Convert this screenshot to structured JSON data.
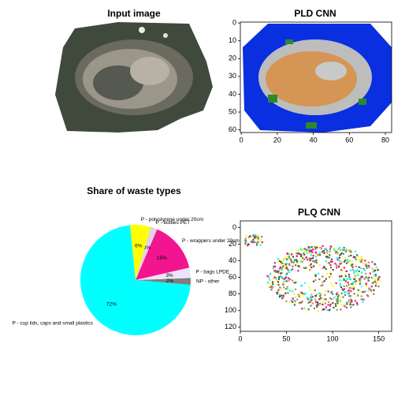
{
  "chart_data": [
    {
      "type": "image",
      "title": "Input image"
    },
    {
      "type": "image",
      "title": "PLD CNN",
      "xlim": [
        -0.5,
        83.5
      ],
      "ylim": [
        61.5,
        -0.5
      ],
      "xticks": [
        0,
        20,
        40,
        60,
        80
      ],
      "yticks": [
        0,
        10,
        20,
        30,
        40,
        50,
        60
      ]
    },
    {
      "type": "pie",
      "title": "Share of waste types",
      "categories": [
        "NP - other",
        "P - bags LPDE",
        "P - wrappers under 20cm",
        "P - bottles PET",
        "P - polystyrene under 20cm",
        "P - cup lids, caps and small plastics"
      ],
      "values": [
        2,
        3,
        15,
        2,
        6,
        72
      ],
      "value_labels": [
        "2%",
        "3%",
        "15%",
        "2%",
        "6%",
        "72%"
      ],
      "colors": [
        "#7f7f7f",
        "#ece4f8",
        "#f2158f",
        "#e4d2e4",
        "#ffff00",
        "#00ffff"
      ],
      "startangle": -5
    },
    {
      "type": "image",
      "title": "PLQ CNN",
      "xlim": [
        0,
        164
      ],
      "ylim": [
        125,
        -8
      ],
      "xticks": [
        0,
        50,
        100,
        150
      ],
      "yticks": [
        0,
        20,
        40,
        60,
        80,
        100,
        120
      ]
    }
  ]
}
